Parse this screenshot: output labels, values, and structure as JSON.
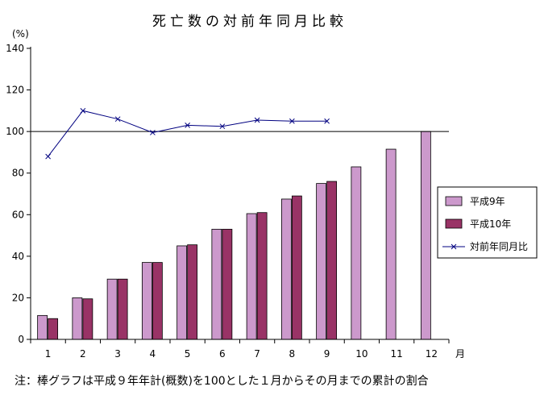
{
  "chart_data": {
    "type": "bar",
    "title": "死亡数の対前年同月比較",
    "ylabel": "(%)",
    "xlabel": "月",
    "ylim": [
      0,
      140
    ],
    "yticks": [
      0,
      20,
      40,
      60,
      80,
      100,
      120,
      140
    ],
    "categories": [
      "1",
      "2",
      "3",
      "4",
      "5",
      "6",
      "7",
      "8",
      "9",
      "10",
      "11",
      "12"
    ],
    "series": [
      {
        "name": "平成9年",
        "type": "bar",
        "color": "#cc99cc",
        "values": [
          11.5,
          20,
          29,
          37,
          45,
          53,
          60.5,
          67.5,
          75,
          83,
          91.5,
          100
        ]
      },
      {
        "name": "平成10年",
        "type": "bar",
        "color": "#993366",
        "values": [
          10,
          19.5,
          29,
          37,
          45.5,
          53,
          61,
          69,
          76,
          null,
          null,
          null
        ]
      },
      {
        "name": "対前年同月比",
        "type": "line",
        "color": "#000080",
        "marker": "x",
        "values": [
          88,
          110,
          106,
          99.5,
          103,
          102.5,
          105.5,
          105,
          105,
          null,
          null,
          null
        ]
      }
    ],
    "reference_line": 100,
    "legend": {
      "placement": "right"
    },
    "grid": false,
    "note": "注：棒グラフは平成９年年計(概数)を100とした１月からその月までの累計の割合"
  }
}
